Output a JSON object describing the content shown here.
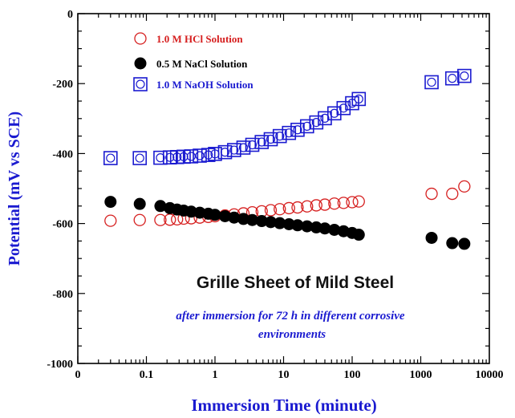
{
  "chart_data": {
    "type": "scatter",
    "title": "Grille Sheet of Mild Steel",
    "subtitle": "after immersion for 72 h in different corrosive environments",
    "subtitle_lines": [
      "after immersion for 72 h in different corrosive",
      "environments"
    ],
    "xlabel": "Immersion Time (minute)",
    "ylabel": "Potential (mV vs SCE)",
    "xscale": "log",
    "xlim": [
      0.01,
      10000
    ],
    "ylim": [
      -1000,
      0
    ],
    "xticks": [
      "0.1",
      "1",
      "10",
      "100",
      "1000",
      "10000"
    ],
    "xtick_left": "0",
    "yticks": [
      "0",
      "-200",
      "-400",
      "-600",
      "-800",
      "-1000"
    ],
    "legend_position": "top-left",
    "colors": {
      "hcl": "#d62020",
      "nacl": "#000000",
      "naoh": "#1a1ad0",
      "axis_label": "#1a1ad0",
      "title": "#111111",
      "subtitle": "#1a1ad0"
    },
    "series": [
      {
        "name": "1.0 M HCl Solution",
        "marker": "open-circle",
        "color": "#d62020",
        "points": [
          [
            0.03,
            -592
          ],
          [
            0.08,
            -590
          ],
          [
            0.16,
            -590
          ],
          [
            0.22,
            -589
          ],
          [
            0.28,
            -588
          ],
          [
            0.35,
            -586
          ],
          [
            0.45,
            -585
          ],
          [
            0.6,
            -583
          ],
          [
            0.8,
            -581
          ],
          [
            1.0,
            -579
          ],
          [
            1.4,
            -577
          ],
          [
            1.9,
            -574
          ],
          [
            2.6,
            -571
          ],
          [
            3.5,
            -568
          ],
          [
            4.8,
            -565
          ],
          [
            6.5,
            -562
          ],
          [
            8.8,
            -559
          ],
          [
            12,
            -556
          ],
          [
            16,
            -554
          ],
          [
            22,
            -551
          ],
          [
            30,
            -548
          ],
          [
            40,
            -546
          ],
          [
            55,
            -543
          ],
          [
            75,
            -541
          ],
          [
            100,
            -539
          ],
          [
            125,
            -537
          ],
          [
            1440,
            -515
          ],
          [
            2880,
            -515
          ],
          [
            4320,
            -494
          ]
        ]
      },
      {
        "name": "0.5 M NaCl Solution",
        "marker": "filled-circle",
        "color": "#000000",
        "points": [
          [
            0.03,
            -538
          ],
          [
            0.08,
            -544
          ],
          [
            0.16,
            -550
          ],
          [
            0.22,
            -556
          ],
          [
            0.28,
            -560
          ],
          [
            0.35,
            -563
          ],
          [
            0.45,
            -566
          ],
          [
            0.6,
            -569
          ],
          [
            0.8,
            -572
          ],
          [
            1.0,
            -575
          ],
          [
            1.4,
            -579
          ],
          [
            1.9,
            -583
          ],
          [
            2.6,
            -587
          ],
          [
            3.5,
            -590
          ],
          [
            4.8,
            -593
          ],
          [
            6.5,
            -596
          ],
          [
            8.8,
            -599
          ],
          [
            12,
            -602
          ],
          [
            16,
            -605
          ],
          [
            22,
            -608
          ],
          [
            30,
            -611
          ],
          [
            40,
            -614
          ],
          [
            55,
            -618
          ],
          [
            75,
            -622
          ],
          [
            100,
            -627
          ],
          [
            125,
            -632
          ],
          [
            1440,
            -641
          ],
          [
            2880,
            -656
          ],
          [
            4320,
            -658
          ]
        ]
      },
      {
        "name": "1.0 M NaOH Solution",
        "marker": "open-square-circle",
        "color": "#1a1ad0",
        "points": [
          [
            0.03,
            -413
          ],
          [
            0.08,
            -413
          ],
          [
            0.16,
            -412
          ],
          [
            0.22,
            -411
          ],
          [
            0.28,
            -410
          ],
          [
            0.35,
            -409
          ],
          [
            0.45,
            -408
          ],
          [
            0.6,
            -406
          ],
          [
            0.8,
            -404
          ],
          [
            1.0,
            -401
          ],
          [
            1.4,
            -396
          ],
          [
            1.9,
            -390
          ],
          [
            2.6,
            -383
          ],
          [
            3.5,
            -375
          ],
          [
            4.8,
            -367
          ],
          [
            6.5,
            -359
          ],
          [
            8.8,
            -350
          ],
          [
            12,
            -341
          ],
          [
            16,
            -332
          ],
          [
            22,
            -322
          ],
          [
            30,
            -311
          ],
          [
            40,
            -299
          ],
          [
            55,
            -285
          ],
          [
            75,
            -270
          ],
          [
            100,
            -256
          ],
          [
            125,
            -244
          ],
          [
            1440,
            -196
          ],
          [
            2880,
            -185
          ],
          [
            4320,
            -178
          ]
        ]
      }
    ]
  }
}
